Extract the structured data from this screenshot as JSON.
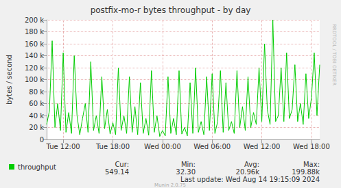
{
  "chart_data": {
    "type": "line",
    "title": "postfix-mo-r bytes throughput - by day",
    "y_label": "bytes / second",
    "categories": [
      null,
      null,
      null,
      null,
      null,
      null,
      "Tue 12:00",
      null,
      null,
      null,
      null,
      null,
      null,
      null,
      null,
      null,
      null,
      null,
      null,
      null,
      null,
      null,
      null,
      null,
      "Tue 18:00",
      null,
      null,
      null,
      null,
      null,
      null,
      null,
      null,
      null,
      null,
      null,
      null,
      null,
      null,
      null,
      null,
      null,
      "Wed 00:00",
      null,
      null,
      null,
      null,
      null,
      null,
      null,
      null,
      null,
      null,
      null,
      null,
      null,
      null,
      null,
      null,
      null,
      "Wed 06:00",
      null,
      null,
      null,
      null,
      null,
      null,
      null,
      null,
      null,
      null,
      null,
      null,
      null,
      null,
      null,
      null,
      null,
      "Wed 12:00",
      null,
      null,
      null,
      null,
      null,
      null,
      null,
      null,
      null,
      null,
      null,
      null,
      null,
      null,
      null,
      null,
      null,
      "Wed 18:00",
      null,
      null,
      null
    ],
    "series": [
      {
        "name": "throughput",
        "color": "#00cc00",
        "line_style": "solid",
        "values": [
          25000,
          48000,
          165000,
          20000,
          60000,
          15000,
          145000,
          12000,
          45000,
          10000,
          140000,
          40000,
          8000,
          35000,
          60000,
          12000,
          130000,
          15000,
          40000,
          10000,
          105000,
          18000,
          50000,
          9000,
          28000,
          8000,
          120000,
          15000,
          40000,
          10000,
          105000,
          12000,
          55000,
          8000,
          95000,
          10000,
          35000,
          7000,
          115000,
          12000,
          40000,
          5000,
          15000,
          6000,
          105000,
          10000,
          35000,
          8000,
          115000,
          9000,
          20000,
          6000,
          95000,
          10000,
          120000,
          12000,
          30000,
          8000,
          105000,
          15000,
          110000,
          10000,
          30000,
          115000,
          12000,
          95000,
          15000,
          30000,
          10000,
          115000,
          20000,
          55000,
          15000,
          105000,
          20000,
          45000,
          25000,
          120000,
          30000,
          160000,
          50000,
          25000,
          199880,
          30000,
          40000,
          120000,
          30000,
          145000,
          35000,
          50000,
          125000,
          30000,
          60000,
          25000,
          110000,
          35000,
          70000,
          145000,
          40000,
          125000
        ]
      }
    ],
    "ylim": [
      0,
      200000
    ],
    "yticks": [
      0,
      {
        "value": 20000,
        "label": "20 k"
      },
      {
        "value": 40000,
        "label": "40 k"
      },
      {
        "value": 60000,
        "label": "60 k"
      },
      {
        "value": 80000,
        "label": "80 k"
      },
      {
        "value": 100000,
        "label": "100 k"
      },
      {
        "value": 120000,
        "label": "120 k"
      },
      {
        "value": 140000,
        "label": "140 k"
      },
      {
        "value": 160000,
        "label": "160 k"
      },
      {
        "value": 180000,
        "label": "180 k"
      },
      {
        "value": 200000,
        "label": "200 k"
      }
    ],
    "grid": true,
    "legend": "bottom-left",
    "stats": [
      {
        "name": "Cur:",
        "value": 549.14
      },
      {
        "name": "Min:",
        "value": 32.3,
        "value_label": "32.30"
      },
      {
        "name": "Avg:",
        "value": 20960,
        "value_label": "20.96k"
      },
      {
        "name": "Max:",
        "value": 199880,
        "value_label": "199.88k"
      }
    ],
    "last_update": "Last update: Wed Aug 14 19:15:09 2024",
    "watermark": "RRDTOOL / TOBI OETIKER",
    "footer": "Munin 2.0.75"
  }
}
